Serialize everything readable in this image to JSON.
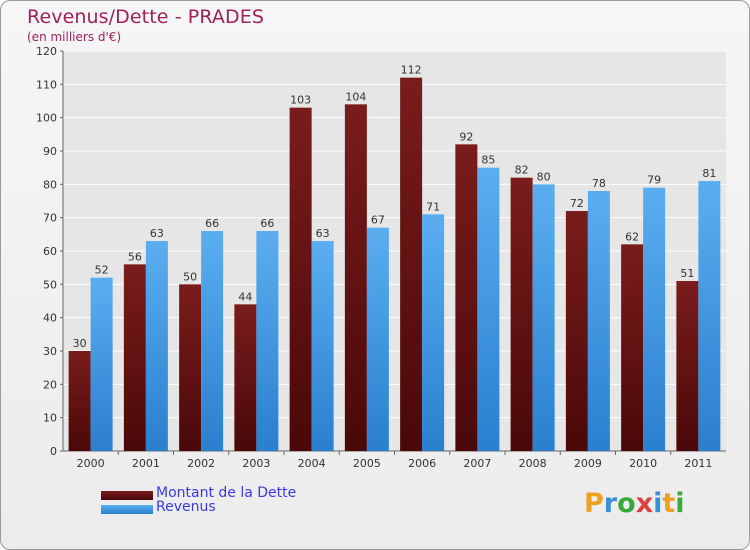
{
  "header": {
    "title": "Revenus/Dette - PRADES",
    "subtitle": "(en milliers d'€)"
  },
  "logo": {
    "text": "Proxiti",
    "letters": [
      "P",
      "r",
      "o",
      "x",
      "i",
      "t",
      "i"
    ],
    "letter_colors": [
      "#f0a020",
      "#3a8fd8",
      "#3aa83a",
      "#e04040",
      "#3a8fd8",
      "#f0a020",
      "#3aa83a"
    ]
  },
  "colors": {
    "dette": "#7a1c1c",
    "dette_dark": "#4a0808",
    "revenus": "#5aaef0",
    "revenus_dark": "#2a7fcf",
    "title": "#a0205a",
    "legend_text": "#3a3ae0",
    "axis_text": "#333333",
    "grid": "#ffffff"
  },
  "chart_data": {
    "type": "bar",
    "title": "Revenus/Dette - PRADES",
    "ylabel": "(en milliers d'€)",
    "xlabel": "",
    "ylim": [
      0,
      120
    ],
    "yticks": [
      0,
      10,
      20,
      30,
      40,
      50,
      60,
      70,
      80,
      90,
      100,
      110,
      120
    ],
    "grid": true,
    "legend_position": "bottom-left",
    "categories": [
      "2000",
      "2001",
      "2002",
      "2003",
      "2004",
      "2005",
      "2006",
      "2007",
      "2008",
      "2009",
      "2010",
      "2011"
    ],
    "series": [
      {
        "name": "Montant de la Dette",
        "values": [
          30,
          56,
          50,
          44,
          103,
          104,
          112,
          92,
          82,
          72,
          62,
          51
        ]
      },
      {
        "name": "Revenus",
        "values": [
          52,
          63,
          66,
          66,
          63,
          67,
          71,
          85,
          80,
          78,
          79,
          81
        ]
      }
    ]
  }
}
